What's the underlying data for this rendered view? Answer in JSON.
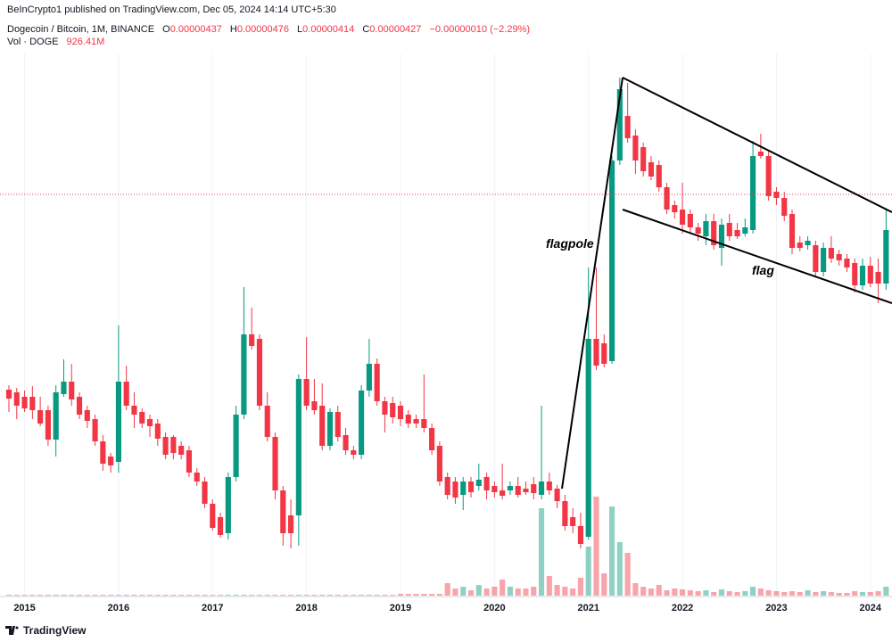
{
  "header": {
    "published": "BeInCrypto1 published on TradingView.com, Dec 05, 2024 14:14 UTC+5:30",
    "symbol": "Dogecoin / Bitcoin, 1M, BINANCE",
    "o_label": "O",
    "o": "0.00000437",
    "h_label": "H",
    "h": "0.00000476",
    "l_label": "L",
    "l": "0.00000414",
    "c_label": "C",
    "c": "0.00000427",
    "change": "−0.00000010 (−2.29%)",
    "vol_label": "Vol · DOGE",
    "vol": "926.41M"
  },
  "footer": {
    "brand": "TradingView"
  },
  "chart_data": {
    "type": "candlestick",
    "up_color": "#089981",
    "down_color": "#f23645",
    "grid": true,
    "ylim": [
      2e-07,
      6.5e-06
    ],
    "y2lim": [
      0,
      30000000000.0
    ],
    "annotations": [
      "flagpole",
      "flag"
    ],
    "categories": [
      null,
      null,
      "2015",
      null,
      null,
      null,
      null,
      null,
      null,
      null,
      null,
      null,
      null,
      null,
      "2016",
      null,
      null,
      null,
      null,
      null,
      null,
      null,
      null,
      null,
      null,
      null,
      "2017",
      null,
      null,
      null,
      null,
      null,
      null,
      null,
      null,
      null,
      null,
      null,
      "2018",
      null,
      null,
      null,
      null,
      null,
      null,
      null,
      null,
      null,
      null,
      null,
      "2019",
      null,
      null,
      null,
      null,
      null,
      null,
      null,
      null,
      null,
      null,
      null,
      "2020",
      null,
      null,
      null,
      null,
      null,
      null,
      null,
      null,
      null,
      null,
      null,
      "2021",
      null,
      null,
      null,
      null,
      null,
      null,
      null,
      null,
      null,
      null,
      null,
      "2022",
      null,
      null,
      null,
      null,
      null,
      null,
      null,
      null,
      null,
      null,
      null,
      "2023",
      null,
      null,
      null,
      null,
      null,
      null,
      null,
      null,
      null,
      null,
      null,
      "2024",
      null,
      null
    ],
    "ohlc": [
      [
        2.53e-06,
        2.58e-06,
        2.28e-06,
        2.43e-06
      ],
      [
        2.5e-06,
        2.55e-06,
        2.2e-06,
        2.35e-06
      ],
      [
        2.45e-06,
        2.52e-06,
        2.28e-06,
        2.32e-06
      ],
      [
        2.45e-06,
        2.57e-06,
        2.2e-06,
        2.3e-06
      ],
      [
        2.3e-06,
        2.45e-06,
        2.12e-06,
        2.15e-06
      ],
      [
        2.3e-06,
        2.35e-06,
        1.9e-06,
        1.97e-06
      ],
      [
        1.97e-06,
        2.58e-06,
        1.78e-06,
        2.5e-06
      ],
      [
        2.48e-06,
        2.87e-06,
        2.45e-06,
        2.62e-06
      ],
      [
        2.62e-06,
        2.82e-06,
        2.35e-06,
        2.42e-06
      ],
      [
        2.45e-06,
        2.5e-06,
        2.2e-06,
        2.25e-06
      ],
      [
        2.3e-06,
        2.35e-06,
        2.1e-06,
        2.18e-06
      ],
      [
        2.2e-06,
        2.25e-06,
        1.9e-06,
        1.95e-06
      ],
      [
        1.95e-06,
        2.02e-06,
        1.62e-06,
        1.7e-06
      ],
      [
        1.78e-06,
        1.82e-06,
        1.6e-06,
        1.68e-06
      ],
      [
        1.72e-06,
        3.25e-06,
        1.6e-06,
        2.62e-06
      ],
      [
        2.62e-06,
        2.8e-06,
        2.3e-06,
        2.35e-06
      ],
      [
        2.35e-06,
        2.5e-06,
        2.1e-06,
        2.25e-06
      ],
      [
        2.28e-06,
        2.32e-06,
        2.1e-06,
        2.15e-06
      ],
      [
        2.2e-06,
        2.25e-06,
        2e-06,
        2.12e-06
      ],
      [
        2.15e-06,
        2.2e-06,
        1.9e-06,
        1.98e-06
      ],
      [
        2e-06,
        2.05e-06,
        1.75e-06,
        1.8e-06
      ],
      [
        2e-06,
        2.02e-06,
        1.75e-06,
        1.82e-06
      ],
      [
        1.9e-06,
        1.95e-06,
        1.75e-06,
        1.8e-06
      ],
      [
        1.85e-06,
        1.9e-06,
        1.55e-06,
        1.6e-06
      ],
      [
        1.6e-06,
        1.65e-06,
        1.45e-06,
        1.5e-06
      ],
      [
        1.5e-06,
        1.55e-06,
        1.2e-06,
        1.25e-06
      ],
      [
        1.25e-06,
        1.3e-06,
        9.5e-07,
        9.8e-07
      ],
      [
        1.1e-06,
        1.15e-06,
        8.7e-07,
        9e-07
      ],
      [
        9.2e-07,
        1.6e-06,
        8.5e-07,
        1.55e-06
      ],
      [
        1.55e-06,
        2.35e-06,
        1.5e-06,
        2.25e-06
      ],
      [
        2.25e-06,
        3.68e-06,
        2.2e-06,
        3.15e-06
      ],
      [
        3.15e-06,
        3.45e-06,
        2.98e-06,
        3.02e-06
      ],
      [
        3.1e-06,
        3.15e-06,
        2.3e-06,
        2.35e-06
      ],
      [
        2.35e-06,
        2.5e-06,
        1.95e-06,
        2e-06
      ],
      [
        2e-06,
        2.05e-06,
        1.3e-06,
        1.4e-06
      ],
      [
        1.4e-06,
        1.45e-06,
        7.8e-07,
        9.2e-07
      ],
      [
        1.12e-06,
        1.3e-06,
        7.5e-07,
        9.2e-07
      ],
      [
        1.12e-06,
        2.7e-06,
        7.8e-07,
        2.65e-06
      ],
      [
        2.65e-06,
        3.12e-06,
        2.3e-06,
        2.35e-06
      ],
      [
        2.4e-06,
        2.65e-06,
        2.25e-06,
        2.3e-06
      ],
      [
        2.35e-06,
        2.6e-06,
        1.85e-06,
        1.9e-06
      ],
      [
        1.9e-06,
        2.32e-06,
        1.85e-06,
        2.28e-06
      ],
      [
        2.28e-06,
        2.35e-06,
        1.95e-06,
        2e-06
      ],
      [
        2.02e-06,
        2.1e-06,
        1.8e-06,
        1.85e-06
      ],
      [
        1.85e-06,
        1.9e-06,
        1.75e-06,
        1.8e-06
      ],
      [
        1.8e-06,
        2.58e-06,
        1.75e-06,
        2.52e-06
      ],
      [
        2.52e-06,
        3.1e-06,
        2.45e-06,
        2.82e-06
      ],
      [
        2.82e-06,
        2.88e-06,
        2.35e-06,
        2.4e-06
      ],
      [
        2.4e-06,
        2.45e-06,
        2.05e-06,
        2.25e-06
      ],
      [
        2.38e-06,
        2.45e-06,
        2.15e-06,
        2.22e-06
      ],
      [
        2.35e-06,
        2.4e-06,
        2.12e-06,
        2.2e-06
      ],
      [
        2.25e-06,
        2.3e-06,
        2.1e-06,
        2.15e-06
      ],
      [
        2.2e-06,
        2.25e-06,
        2.1e-06,
        2.15e-06
      ],
      [
        2.2e-06,
        2.7e-06,
        2.05e-06,
        2.1e-06
      ],
      [
        2.1e-06,
        2.15e-06,
        1.8e-06,
        1.85e-06
      ],
      [
        1.9e-06,
        1.95e-06,
        1.45e-06,
        1.5e-06
      ],
      [
        1.55e-06,
        1.6e-06,
        1.3e-06,
        1.35e-06
      ],
      [
        1.5e-06,
        1.55e-06,
        1.25e-06,
        1.32e-06
      ],
      [
        1.35e-06,
        1.55e-06,
        1.18e-06,
        1.5e-06
      ],
      [
        1.5e-06,
        1.55e-06,
        1.32e-06,
        1.38e-06
      ],
      [
        1.45e-06,
        1.7e-06,
        1.4e-06,
        1.52e-06
      ],
      [
        1.55e-06,
        1.6e-06,
        1.3e-06,
        1.4e-06
      ],
      [
        1.45e-06,
        1.5e-06,
        1.32e-06,
        1.38e-06
      ],
      [
        1.4e-06,
        1.7e-06,
        1.3e-06,
        1.34e-06
      ],
      [
        1.4e-06,
        1.5e-06,
        1.35e-06,
        1.45e-06
      ],
      [
        1.45e-06,
        1.55e-06,
        1.32e-06,
        1.35e-06
      ],
      [
        1.42e-06,
        1.5e-06,
        1.35e-06,
        1.38e-06
      ],
      [
        1.47e-06,
        1.55e-06,
        1.3e-06,
        1.37e-06
      ],
      [
        1.35e-06,
        2.35e-06,
        1.3e-06,
        1.5e-06
      ],
      [
        1.5e-06,
        1.6e-06,
        1.35e-06,
        1.4e-06
      ],
      [
        1.42e-06,
        1.46e-06,
        1.2e-06,
        1.28e-06
      ],
      [
        1.28e-06,
        1.35e-06,
        9.5e-07,
        1e-06
      ],
      [
        1.1e-06,
        1.2e-06,
        9.2e-07,
        1e-06
      ],
      [
        1e-06,
        1.15e-06,
        7.5e-07,
        8e-07
      ],
      [
        8.8e-07,
        3.9e-06,
        8.5e-07,
        3.1e-06
      ],
      [
        3.1e-06,
        3.9e-06,
        2.75e-06,
        2.8e-06
      ],
      [
        3.05e-06,
        3.15e-06,
        2.78e-06,
        2.82e-06
      ],
      [
        2.85e-06,
        5.15e-06,
        2.82e-06,
        5.1e-06
      ],
      [
        5.1e-06,
        6.03e-06,
        5.05e-06,
        5.9e-06
      ],
      [
        5.6e-06,
        5.97e-06,
        5.3e-06,
        5.35e-06
      ],
      [
        5.38e-06,
        5.45e-06,
        4.95e-06,
        5.1e-06
      ],
      [
        5.25e-06,
        5.3e-06,
        4.92e-06,
        4.98e-06
      ],
      [
        5.08e-06,
        5.15e-06,
        4.88e-06,
        4.92e-06
      ],
      [
        5.05e-06,
        5.1e-06,
        4.75e-06,
        4.8e-06
      ],
      [
        4.8e-06,
        4.85e-06,
        4.5e-06,
        4.55e-06
      ],
      [
        4.6e-06,
        4.65e-06,
        4.45e-06,
        4.52e-06
      ],
      [
        4.55e-06,
        4.85e-06,
        4.28e-06,
        4.38e-06
      ],
      [
        4.5e-06,
        4.55e-06,
        4.28e-06,
        4.35e-06
      ],
      [
        4.35e-06,
        4.4e-06,
        4.2e-06,
        4.28e-06
      ],
      [
        4.25e-06,
        4.5e-06,
        4.15e-06,
        4.42e-06
      ],
      [
        4.42e-06,
        4.5e-06,
        4.1e-06,
        4.15e-06
      ],
      [
        4.12e-06,
        4.45e-06,
        3.92e-06,
        4.38e-06
      ],
      [
        4.4e-06,
        4.5e-06,
        4.2e-06,
        4.25e-06
      ],
      [
        4.32e-06,
        4.4e-06,
        4.22e-06,
        4.25e-06
      ],
      [
        4.28e-06,
        4.45e-06,
        4.25e-06,
        4.35e-06
      ],
      [
        4.32e-06,
        5.32e-06,
        4.28e-06,
        5.15e-06
      ],
      [
        5.2e-06,
        5.4e-06,
        5.12e-06,
        5.15e-06
      ],
      [
        5.15e-06,
        5.22e-06,
        4.65e-06,
        4.7e-06
      ],
      [
        4.75e-06,
        4.8e-06,
        4.6e-06,
        4.68e-06
      ],
      [
        4.68e-06,
        4.75e-06,
        4.42e-06,
        4.48e-06
      ],
      [
        4.5e-06,
        4.55e-06,
        4.05e-06,
        4.12e-06
      ],
      [
        4.18e-06,
        4.25e-06,
        4.08e-06,
        4.12e-06
      ],
      [
        4.15e-06,
        4.25e-06,
        4.1e-06,
        4.2e-06
      ],
      [
        4.15e-06,
        4.2e-06,
        3.8e-06,
        3.85e-06
      ],
      [
        3.85e-06,
        4.18e-06,
        3.8e-06,
        4.12e-06
      ],
      [
        4.12e-06,
        4.25e-06,
        3.95e-06,
        4e-06
      ],
      [
        4.05e-06,
        4.1e-06,
        3.92e-06,
        3.98e-06
      ],
      [
        4e-06,
        4.05e-06,
        3.85e-06,
        3.9e-06
      ],
      [
        3.95e-06,
        4e-06,
        3.62e-06,
        3.7e-06
      ],
      [
        3.7e-06,
        4e-06,
        3.65e-06,
        3.92e-06
      ],
      [
        3.92e-06,
        4.02e-06,
        3.68e-06,
        3.72e-06
      ],
      [
        3.85e-06,
        4e-06,
        3.5e-06,
        3.72e-06
      ],
      [
        3.72e-06,
        4.55e-06,
        3.65e-06,
        4.32e-06
      ]
    ],
    "volume": {
      "axis": "y2",
      "values": [
        200000000.0,
        200000000.0,
        200000000.0,
        200000000.0,
        200000000.0,
        200000000.0,
        200000000.0,
        200000000.0,
        200000000.0,
        200000000.0,
        200000000.0,
        200000000.0,
        200000000.0,
        200000000.0,
        200000000.0,
        200000000.0,
        200000000.0,
        200000000.0,
        200000000.0,
        200000000.0,
        200000000.0,
        200000000.0,
        200000000.0,
        200000000.0,
        200000000.0,
        200000000.0,
        200000000.0,
        200000000.0,
        200000000.0,
        200000000.0,
        200000000.0,
        200000000.0,
        200000000.0,
        200000000.0,
        200000000.0,
        200000000.0,
        200000000.0,
        200000000.0,
        200000000.0,
        200000000.0,
        200000000.0,
        200000000.0,
        200000000.0,
        200000000.0,
        200000000.0,
        200000000.0,
        200000000.0,
        200000000.0,
        200000000.0,
        200000000.0,
        400000000.0,
        400000000.0,
        400000000.0,
        400000000.0,
        400000000.0,
        400000000.0,
        2800000000.0,
        1600000000.0,
        2000000000.0,
        1200000000.0,
        2400000000.0,
        1600000000.0,
        2000000000.0,
        3600000000.0,
        2000000000.0,
        1600000000.0,
        1600000000.0,
        2000000000.0,
        19600000000.0,
        4400000000.0,
        2400000000.0,
        2000000000.0,
        1600000000.0,
        4000000000.0,
        11000000000.0,
        22200000000.0,
        5000000000.0,
        20000000000.0,
        12000000000.0,
        9600000000.0,
        2800000000.0,
        2000000000.0,
        1600000000.0,
        2400000000.0,
        1200000000.0,
        1600000000.0,
        1400000000.0,
        1200000000.0,
        1000000000.0,
        1200000000.0,
        800000000.0,
        1400000000.0,
        1000000000.0,
        800000000.0,
        1000000000.0,
        2000000000.0,
        1600000000.0,
        1200000000.0,
        1000000000.0,
        800000000.0,
        1000000000.0,
        800000000.0,
        1200000000.0,
        800000000.0,
        1000000000.0,
        800000000.0,
        600000000.0,
        600000000.0,
        1000000000.0,
        800000000.0,
        800000000.0,
        1000000000.0,
        2000000000.0
      ]
    }
  }
}
